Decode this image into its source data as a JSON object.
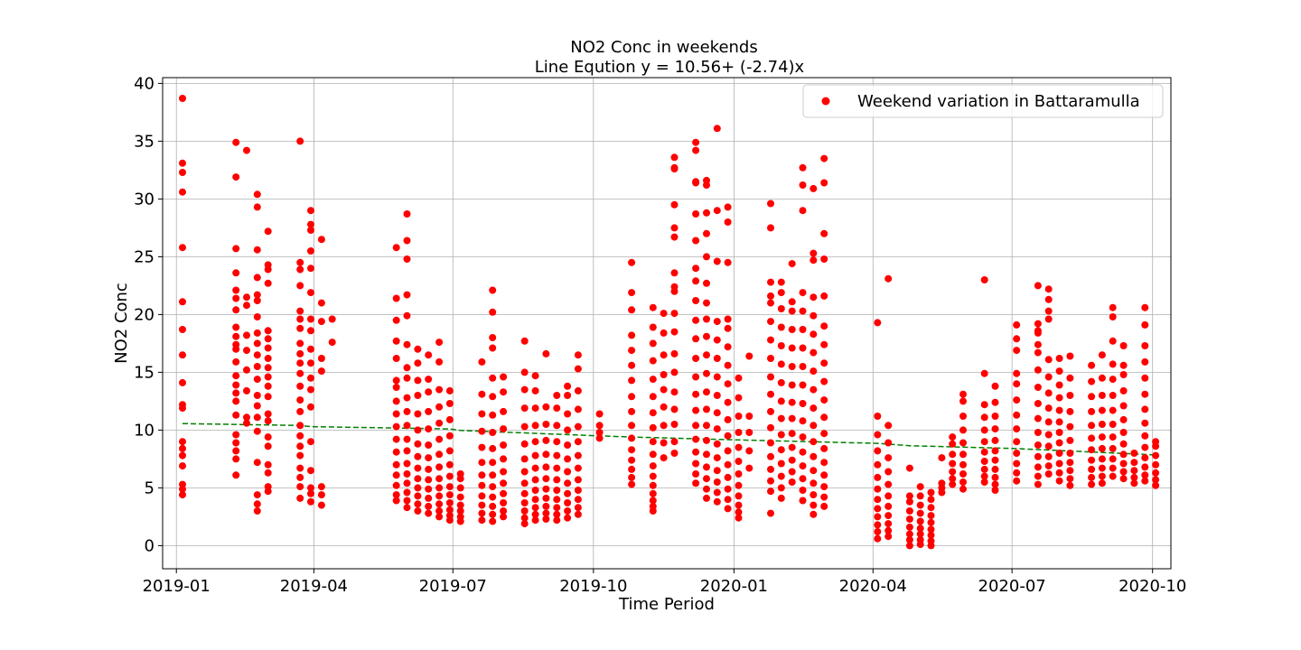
{
  "chart_data": {
    "type": "scatter",
    "title": "NO2 Conc in weekends",
    "subtitle": "Line Eqution y = 10.56+ (-2.74)x",
    "xlabel": "Time Period",
    "ylabel": "NO2 Conc",
    "x_ticks": [
      "2019-01",
      "2019-04",
      "2019-07",
      "2019-10",
      "2020-01",
      "2020-04",
      "2020-07",
      "2020-10"
    ],
    "y_ticks": [
      "0",
      "5",
      "10",
      "15",
      "20",
      "25",
      "30",
      "35",
      "40"
    ],
    "xlim": [
      "2018-12-23",
      "2020-10-13"
    ],
    "ylim": [
      -2,
      40.5
    ],
    "grid": true,
    "legend": {
      "entries": [
        "Weekend variation in Battaramulla"
      ],
      "placement": "top-right"
    },
    "colors": {
      "points": "#ff0000",
      "trend": "#008000"
    },
    "series": [
      {
        "name": "Weekend variation in Battaramulla",
        "kind": "scatter",
        "points": [
          [
            "2019-01-05",
            4.4,
            4.9,
            5.3,
            6.9,
            7.8,
            8.4,
            9.0,
            11.9,
            12.2,
            14.1,
            16.5,
            18.7,
            21.1,
            25.8,
            30.6,
            32.3,
            33.1,
            38.7
          ],
          [
            "2019-02-09",
            6.1,
            7.5,
            8.2,
            8.9,
            9.6,
            11.3,
            12.5,
            13.2,
            13.9,
            14.7,
            15.9,
            17.0,
            17.4,
            18.1,
            18.9,
            20.4,
            21.4,
            22.1,
            23.6,
            25.7,
            31.9,
            34.9
          ],
          [
            "2019-02-16",
            10.6,
            11.1,
            13.4,
            15.2,
            16.9,
            18.2,
            20.8,
            21.5,
            34.2
          ],
          [
            "2019-02-23",
            3.0,
            3.6,
            4.4,
            7.2,
            9.9,
            11.1,
            12.1,
            13.0,
            14.4,
            15.5,
            16.5,
            17.5,
            18.4,
            19.8,
            21.2,
            21.7,
            23.2,
            25.6,
            29.3,
            30.4
          ],
          [
            "2019-03-02",
            4.7,
            5.1,
            6.3,
            7.0,
            8.6,
            9.4,
            10.8,
            11.4,
            12.9,
            13.8,
            14.6,
            15.4,
            16.2,
            17.1,
            17.9,
            18.6,
            22.7,
            23.9,
            24.3,
            27.2
          ],
          [
            "2019-03-23",
            4.1,
            5.1,
            5.9,
            6.7,
            7.8,
            8.6,
            9.5,
            10.4,
            11.6,
            12.6,
            13.8,
            14.9,
            15.8,
            16.6,
            17.5,
            18.8,
            19.6,
            20.3,
            22.5,
            23.9,
            24.5,
            35.0
          ],
          [
            "2019-03-30",
            3.8,
            4.5,
            5.0,
            6.5,
            9.0,
            12.0,
            13.5,
            14.5,
            15.8,
            17.0,
            18.6,
            19.6,
            21.9,
            24.0,
            25.5,
            27.3,
            27.8,
            29.0
          ],
          [
            "2019-04-06",
            3.5,
            4.4,
            5.1,
            15.1,
            16.2,
            19.4,
            21.0,
            26.5
          ],
          [
            "2019-04-13",
            17.6,
            19.6
          ],
          [
            "2019-05-25",
            3.9,
            4.4,
            5.2,
            6.1,
            7.0,
            8.1,
            9.2,
            10.3,
            11.4,
            12.5,
            13.7,
            14.3,
            16.2,
            17.7,
            19.5,
            21.4,
            25.8
          ],
          [
            "2019-06-01",
            3.3,
            3.9,
            4.6,
            5.4,
            6.2,
            7.1,
            8.2,
            9.2,
            10.4,
            11.6,
            12.8,
            14.5,
            15.4,
            17.4,
            19.9,
            21.7,
            24.8,
            26.4,
            28.7
          ],
          [
            "2019-06-08",
            3.0,
            3.6,
            4.3,
            5.0,
            5.8,
            6.7,
            7.7,
            8.8,
            10.0,
            11.4,
            13.0,
            14.3,
            15.8,
            17.0
          ],
          [
            "2019-06-15",
            2.8,
            3.4,
            4.1,
            4.9,
            5.7,
            6.6,
            7.6,
            8.7,
            10.1,
            11.6,
            13.3,
            14.4,
            16.5
          ],
          [
            "2019-06-22",
            2.5,
            3.0,
            3.6,
            4.3,
            5.0,
            5.8,
            6.8,
            7.9,
            9.2,
            10.6,
            12.0,
            13.5,
            15.9,
            17.6
          ],
          [
            "2019-06-29",
            2.2,
            2.6,
            3.1,
            3.7,
            4.4,
            5.1,
            6.0,
            7.0,
            8.2,
            9.5,
            10.9,
            12.3,
            13.4
          ],
          [
            "2019-07-06",
            2.1,
            2.5,
            3.0,
            3.5,
            4.2,
            5.0,
            5.8,
            6.2
          ],
          [
            "2019-07-20",
            2.2,
            2.8,
            3.5,
            4.3,
            5.2,
            6.1,
            7.2,
            8.5,
            9.9,
            11.4,
            13.1,
            15.9
          ],
          [
            "2019-07-27",
            2.1,
            2.7,
            3.4,
            4.2,
            5.1,
            6.1,
            7.2,
            8.4,
            9.8,
            11.3,
            12.9,
            14.5,
            17.1,
            18.0,
            20.2,
            22.1
          ],
          [
            "2019-08-03",
            2.5,
            3.0,
            3.7,
            4.5,
            5.4,
            6.4,
            7.5,
            8.7,
            10.1,
            11.6,
            13.3,
            14.6
          ],
          [
            "2019-08-17",
            1.9,
            2.4,
            3.0,
            3.7,
            4.5,
            5.4,
            6.4,
            7.5,
            8.8,
            10.3,
            11.9,
            13.5,
            15.0,
            17.7
          ],
          [
            "2019-08-24",
            2.2,
            2.7,
            3.3,
            4.0,
            4.8,
            5.7,
            6.7,
            7.8,
            9.0,
            10.4,
            11.9,
            13.4,
            14.7
          ],
          [
            "2019-08-31",
            2.3,
            2.8,
            3.4,
            4.1,
            4.9,
            5.8,
            6.8,
            7.9,
            9.1,
            10.5,
            12.0,
            16.6
          ],
          [
            "2019-09-07",
            2.2,
            2.7,
            3.3,
            4.0,
            4.8,
            5.7,
            6.7,
            7.8,
            9.0,
            10.4,
            11.9,
            13.0
          ],
          [
            "2019-09-14",
            2.4,
            3.0,
            3.7,
            4.5,
            5.4,
            6.4,
            7.5,
            8.7,
            10.0,
            11.4,
            13.0,
            13.8
          ],
          [
            "2019-09-21",
            2.7,
            3.3,
            4.0,
            4.8,
            5.7,
            6.7,
            7.8,
            9.0,
            10.3,
            11.8,
            13.4,
            15.3,
            16.5
          ],
          [
            "2019-10-05",
            9.3,
            9.8,
            10.4,
            11.4
          ],
          [
            "2019-10-26",
            5.3,
            5.9,
            6.6,
            7.4,
            8.3,
            9.3,
            10.4,
            11.6,
            12.9,
            14.3,
            15.6,
            16.9,
            18.2,
            20.4,
            21.9,
            24.5
          ],
          [
            "2019-11-09",
            3.0,
            3.4,
            3.9,
            4.5,
            5.2,
            6.0,
            6.9,
            7.9,
            9.0,
            10.2,
            11.5,
            12.9,
            14.4,
            16.0,
            17.5,
            18.9,
            20.6
          ],
          [
            "2019-11-16",
            7.6,
            8.9,
            10.4,
            12.0,
            13.5,
            14.8,
            16.5,
            18.4,
            20.1
          ],
          [
            "2019-11-23",
            8.0,
            9.0,
            10.5,
            11.8,
            13.3,
            15.0,
            16.6,
            18.5,
            20.1,
            22.0,
            22.4,
            23.6,
            26.7,
            27.5,
            29.5,
            32.6,
            32.7,
            33.6
          ],
          [
            "2019-12-07",
            5.4,
            6.2,
            7.1,
            8.1,
            9.2,
            10.4,
            11.7,
            13.1,
            14.6,
            16.2,
            17.9,
            19.5,
            21.2,
            22.9,
            24.0,
            26.4,
            28.7,
            31.4,
            31.5,
            34.2,
            34.9
          ],
          [
            "2019-12-14",
            4.1,
            4.9,
            5.8,
            6.8,
            7.9,
            9.1,
            10.4,
            11.8,
            13.3,
            14.9,
            16.5,
            18.1,
            19.6,
            21.0,
            22.7,
            25.0,
            27.0,
            28.8,
            31.2,
            31.6
          ],
          [
            "2019-12-21",
            3.8,
            4.6,
            5.5,
            6.5,
            7.6,
            8.8,
            10.1,
            11.5,
            13.0,
            14.6,
            16.2,
            17.8,
            19.4,
            24.6,
            29.0,
            36.1
          ],
          [
            "2019-12-28",
            3.2,
            4.0,
            4.9,
            5.9,
            7.0,
            8.2,
            9.5,
            10.9,
            12.4,
            14.0,
            15.6,
            17.2,
            18.8,
            19.6,
            24.5,
            28.0,
            29.3
          ],
          [
            "2020-01-04",
            2.4,
            2.9,
            3.5,
            4.3,
            5.2,
            6.2,
            7.3,
            8.5,
            9.8,
            11.2,
            12.8,
            14.5
          ],
          [
            "2020-01-11",
            6.7,
            8.2,
            9.8,
            11.2,
            16.4
          ],
          [
            "2020-01-25",
            2.8,
            4.7,
            5.6,
            6.6,
            7.7,
            8.9,
            10.2,
            11.6,
            13.1,
            14.6,
            16.2,
            17.8,
            19.4,
            21.0,
            21.6,
            22.8,
            27.5,
            29.6
          ],
          [
            "2020-02-01",
            4.1,
            5.0,
            6.0,
            7.1,
            8.3,
            9.6,
            11.0,
            12.5,
            14.1,
            15.7,
            17.3,
            18.9,
            20.5,
            21.9,
            22.8
          ],
          [
            "2020-02-08",
            5.5,
            6.4,
            7.4,
            8.5,
            9.7,
            11.0,
            12.4,
            13.9,
            15.5,
            17.1,
            18.7,
            20.3,
            21.1,
            24.4
          ],
          [
            "2020-02-15",
            3.9,
            4.8,
            5.8,
            6.9,
            8.1,
            9.4,
            10.8,
            12.3,
            13.9,
            15.5,
            17.1,
            18.7,
            20.3,
            21.9,
            29.0,
            31.2,
            32.7
          ],
          [
            "2020-02-22",
            2.7,
            3.5,
            4.4,
            5.4,
            6.5,
            7.7,
            9.0,
            10.4,
            11.9,
            13.5,
            15.1,
            16.7,
            18.3,
            19.9,
            21.5,
            24.7,
            25.3,
            30.9
          ],
          [
            "2020-02-29",
            3.4,
            4.2,
            5.1,
            6.1,
            7.2,
            8.4,
            9.7,
            11.1,
            12.6,
            14.2,
            15.8,
            17.4,
            19.0,
            21.6,
            24.8,
            27.0,
            31.4,
            33.5
          ],
          [
            "2020-04-04",
            0.6,
            1.2,
            1.8,
            2.5,
            3.2,
            4.0,
            4.9,
            5.9,
            7.0,
            8.2,
            9.6,
            11.2,
            19.3
          ],
          [
            "2020-04-11",
            0.8,
            1.3,
            1.9,
            2.6,
            3.4,
            4.3,
            5.3,
            6.4,
            7.6,
            8.9,
            10.4,
            23.1
          ],
          [
            "2020-04-25",
            0.0,
            0.5,
            1.0,
            1.6,
            2.3,
            3.0,
            3.8,
            4.3,
            6.7
          ],
          [
            "2020-05-02",
            0.1,
            0.5,
            1.0,
            1.5,
            2.1,
            2.8,
            3.5,
            4.3,
            5.1
          ],
          [
            "2020-05-09",
            0.0,
            0.4,
            0.9,
            1.4,
            2.0,
            2.6,
            3.3,
            4.0,
            4.6
          ],
          [
            "2020-05-16",
            4.6,
            5.0,
            5.4,
            7.6
          ],
          [
            "2020-05-23",
            5.3,
            5.8,
            6.4,
            7.1,
            7.9,
            8.8,
            9.4
          ],
          [
            "2020-05-30",
            4.9,
            5.5,
            6.2,
            7.0,
            7.9,
            8.9,
            10.0,
            11.2,
            12.5,
            13.1
          ],
          [
            "2020-06-13",
            5.5,
            6.0,
            6.6,
            7.3,
            8.1,
            9.0,
            10.0,
            11.1,
            12.2,
            14.9,
            23.0
          ],
          [
            "2020-06-20",
            4.8,
            5.3,
            5.9,
            6.6,
            7.4,
            8.2,
            9.1,
            10.1,
            11.2,
            12.4,
            13.8
          ],
          [
            "2020-07-04",
            5.6,
            6.3,
            7.1,
            8.0,
            9.0,
            10.1,
            11.3,
            12.6,
            14.0,
            14.9,
            16.9,
            17.9,
            19.1
          ],
          [
            "2020-07-18",
            5.3,
            6.0,
            6.8,
            7.7,
            8.7,
            9.8,
            11.0,
            12.3,
            13.7,
            15.2,
            16.7,
            17.4,
            18.4,
            18.6,
            19.2,
            22.5
          ],
          [
            "2020-07-25",
            6.2,
            6.9,
            7.7,
            8.6,
            9.6,
            10.7,
            11.9,
            13.2,
            14.6,
            16.1,
            19.6,
            20.3,
            21.3,
            22.2
          ],
          [
            "2020-08-01",
            5.6,
            6.3,
            7.1,
            8.0,
            8.9,
            9.8,
            10.7,
            11.7,
            12.8,
            13.9,
            15.1,
            16.2
          ],
          [
            "2020-08-08",
            5.2,
            5.8,
            6.5,
            7.2,
            8.0,
            9.1,
            10.3,
            11.6,
            13.0,
            14.5,
            16.4
          ],
          [
            "2020-08-22",
            5.3,
            5.9,
            6.6,
            7.4,
            8.3,
            9.3,
            10.4,
            11.6,
            12.9,
            14.2,
            15.6
          ],
          [
            "2020-08-29",
            5.4,
            6.0,
            6.7,
            7.5,
            8.4,
            9.4,
            10.5,
            11.7,
            13.0,
            14.5,
            16.5
          ],
          [
            "2020-09-05",
            6.0,
            6.7,
            7.5,
            8.4,
            9.4,
            10.5,
            11.7,
            13.0,
            14.4,
            15.7,
            17.7,
            19.8,
            20.6
          ],
          [
            "2020-09-12",
            5.8,
            6.4,
            7.1,
            7.9,
            8.8,
            9.8,
            10.9,
            12.1,
            13.4,
            14.8,
            15.6,
            17.3
          ],
          [
            "2020-09-19",
            5.4,
            5.9,
            6.5,
            7.2,
            8.0
          ],
          [
            "2020-09-26",
            5.6,
            6.1,
            6.8,
            7.6,
            8.5,
            9.5,
            10.6,
            11.8,
            13.1,
            14.5,
            15.9,
            17.3,
            19.1,
            20.6
          ],
          [
            "2020-10-03",
            5.2,
            5.7,
            6.3,
            7.0,
            7.8,
            8.6,
            9.0
          ]
        ]
      },
      {
        "name": "",
        "kind": "trend",
        "points": [
          [
            "2019-01-05",
            10.56
          ],
          [
            "2019-03-23",
            10.4
          ],
          [
            "2019-03-30",
            10.3
          ],
          [
            "2019-06-29",
            10.1
          ],
          [
            "2019-07-06",
            9.97
          ],
          [
            "2019-10-05",
            9.5
          ],
          [
            "2019-10-26",
            9.4
          ],
          [
            "2020-01-04",
            9.15
          ],
          [
            "2020-04-04",
            8.85
          ],
          [
            "2020-04-25",
            8.65
          ],
          [
            "2020-07-04",
            8.4
          ],
          [
            "2020-10-03",
            7.85
          ]
        ]
      }
    ]
  }
}
